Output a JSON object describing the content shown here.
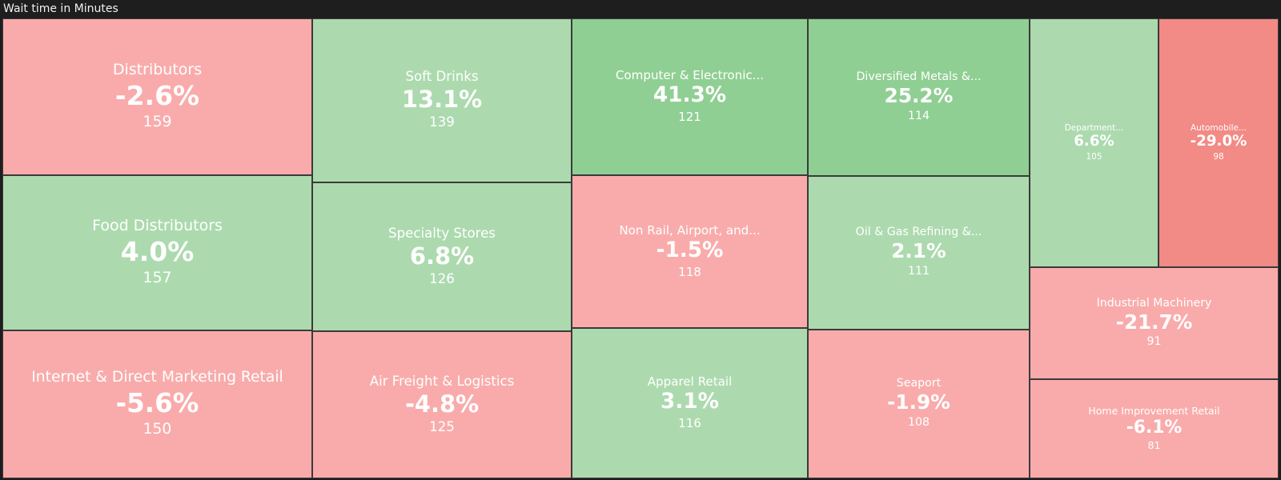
{
  "panel": {
    "title": "Wait time in Minutes"
  },
  "colors": {
    "background": "#1e1e1e",
    "border": "#3a3a3a",
    "light_red": "#f9abab",
    "red": "#f28a85",
    "light_green": "#acdaae",
    "green": "#90cf93",
    "text": "#ffffff"
  },
  "chart_data": {
    "type": "treemap",
    "title": "Wait time in Minutes",
    "items": [
      {
        "label": "Distributors",
        "change": "-2.6%",
        "value": 159,
        "color": "light_red"
      },
      {
        "label": "Food Distributors",
        "change": "4.0%",
        "value": 157,
        "color": "light_green"
      },
      {
        "label": "Internet & Direct Marketing Retail",
        "change": "-5.6%",
        "value": 150,
        "color": "light_red"
      },
      {
        "label": "Soft Drinks",
        "change": "13.1%",
        "value": 139,
        "color": "light_green"
      },
      {
        "label": "Specialty Stores",
        "change": "6.8%",
        "value": 126,
        "color": "light_green"
      },
      {
        "label": "Air Freight & Logistics",
        "change": "-4.8%",
        "value": 125,
        "color": "light_red"
      },
      {
        "label": "Computer & Electronic...",
        "change": "41.3%",
        "value": 121,
        "color": "green"
      },
      {
        "label": "Non Rail, Airport, and...",
        "change": "-1.5%",
        "value": 118,
        "color": "light_red"
      },
      {
        "label": "Apparel Retail",
        "change": "3.1%",
        "value": 116,
        "color": "light_green"
      },
      {
        "label": "Diversified Metals &...",
        "change": "25.2%",
        "value": 114,
        "color": "green"
      },
      {
        "label": "Oil & Gas Refining &...",
        "change": "2.1%",
        "value": 111,
        "color": "light_green"
      },
      {
        "label": "Seaport",
        "change": "-1.9%",
        "value": 108,
        "color": "light_red"
      },
      {
        "label": "Department...",
        "change": "6.6%",
        "value": 105,
        "color": "light_green"
      },
      {
        "label": "Automobile...",
        "change": "-29.0%",
        "value": 98,
        "color": "red"
      },
      {
        "label": "Industrial Machinery",
        "change": "-21.7%",
        "value": 91,
        "color": "light_red"
      },
      {
        "label": "Home Improvement Retail",
        "change": "-6.1%",
        "value": 81,
        "color": "light_red"
      }
    ]
  }
}
